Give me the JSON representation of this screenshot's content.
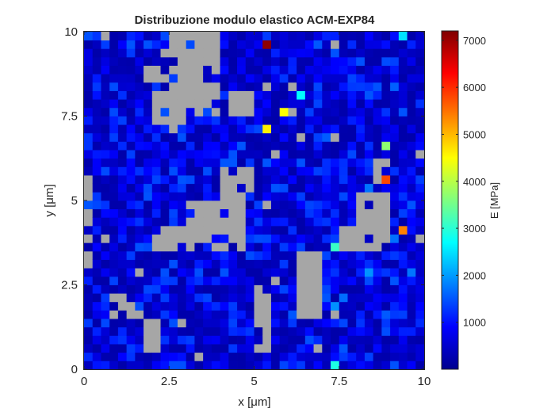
{
  "chart_data": {
    "type": "heatmap",
    "title": "Distribuzione modulo elastico ACM-EXP84",
    "xlabel": "x [μm]",
    "ylabel": "y [μm]",
    "xlim": [
      0,
      10
    ],
    "ylim": [
      0,
      10
    ],
    "x_ticks": [
      "0",
      "2.5",
      "5",
      "7.5",
      "10"
    ],
    "y_ticks": [
      "0",
      "2.5",
      "5",
      "7.5",
      "10"
    ],
    "grid": false,
    "colormap": "jet",
    "nan_color": "#a6a6a6",
    "colorbar": {
      "label": "E [MPa]",
      "range": [
        0,
        7200
      ],
      "ticks": [
        "1000",
        "2000",
        "3000",
        "4000",
        "5000",
        "6000",
        "7000"
      ],
      "tick_values": [
        1000,
        2000,
        3000,
        4000,
        5000,
        6000,
        7000
      ]
    },
    "grid_size": [
      40,
      40
    ],
    "cell_size_um": 0.25,
    "typical_value_mpa": [
      300,
      1500
    ],
    "no_data_regions": [
      {
        "x": [
          2.5,
          3.9
        ],
        "y": [
          8.0,
          10.0
        ]
      },
      {
        "x": [
          1.8,
          2.6
        ],
        "y": [
          8.5,
          9.0
        ]
      },
      {
        "x": [
          2.0,
          4.9
        ],
        "y": [
          7.6,
          8.3
        ]
      },
      {
        "x": [
          2.0,
          3.0
        ],
        "y": [
          7.2,
          7.6
        ]
      },
      {
        "x": [
          0.0,
          0.3
        ],
        "y": [
          3.0,
          6.0
        ]
      },
      {
        "x": [
          2.0,
          3.5
        ],
        "y": [
          3.4,
          4.3
        ]
      },
      {
        "x": [
          3.0,
          4.8
        ],
        "y": [
          3.6,
          5.0
        ]
      },
      {
        "x": [
          4.0,
          4.9
        ],
        "y": [
          5.0,
          6.0
        ]
      },
      {
        "x": [
          5.0,
          5.5
        ],
        "y": [
          0.4,
          2.4
        ]
      },
      {
        "x": [
          6.2,
          7.0
        ],
        "y": [
          1.4,
          3.4
        ]
      },
      {
        "x": [
          1.8,
          2.3
        ],
        "y": [
          0.6,
          1.6
        ]
      },
      {
        "x": [
          0.7,
          1.5
        ],
        "y": [
          1.4,
          2.2
        ]
      },
      {
        "x": [
          8.1,
          8.9
        ],
        "y": [
          3.4,
          5.2
        ]
      },
      {
        "x": [
          7.4,
          8.3
        ],
        "y": [
          3.6,
          4.2
        ]
      },
      {
        "x": [
          8.5,
          9.0
        ],
        "y": [
          5.4,
          6.2
        ]
      }
    ],
    "hotspots": [
      {
        "x": 5.375,
        "y": 9.625,
        "value": 7100
      },
      {
        "x": 8.875,
        "y": 5.625,
        "value": 5800
      },
      {
        "x": 9.375,
        "y": 4.125,
        "value": 5400
      },
      {
        "x": 5.875,
        "y": 7.625,
        "value": 4500
      },
      {
        "x": 5.375,
        "y": 7.125,
        "value": 4600
      },
      {
        "x": 8.875,
        "y": 6.625,
        "value": 3700
      },
      {
        "x": 6.375,
        "y": 8.125,
        "value": 2700
      },
      {
        "x": 9.375,
        "y": 9.875,
        "value": 2500
      },
      {
        "x": 7.375,
        "y": 3.625,
        "value": 3100
      },
      {
        "x": 7.375,
        "y": 0.125,
        "value": 2900
      }
    ]
  }
}
